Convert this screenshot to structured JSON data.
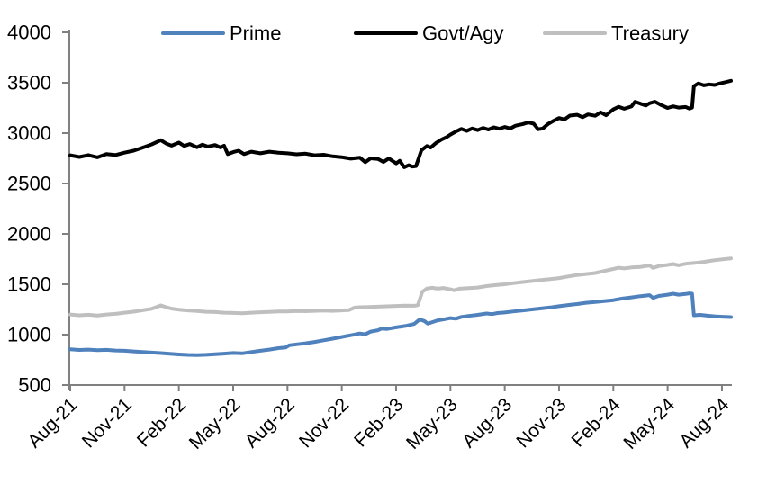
{
  "chart_data": {
    "type": "line",
    "title": "",
    "xlabel": "",
    "ylabel": "",
    "grid": false,
    "axis_color": "#808080",
    "text_color": "#000000",
    "background_color": "#ffffff",
    "ylim": [
      500,
      4000
    ],
    "ytick_labels": [
      "500",
      "1000",
      "1500",
      "2000",
      "2500",
      "3000",
      "3500",
      "4000"
    ],
    "yticks": [
      500,
      1000,
      1500,
      2000,
      2500,
      3000,
      3500,
      4000
    ],
    "x_tick_labels": [
      "Aug-21",
      "Nov-21",
      "Feb-22",
      "May-22",
      "Aug-22",
      "Nov-22",
      "Feb-23",
      "May-23",
      "Aug-23",
      "Nov-23",
      "Feb-24",
      "May-24",
      "Aug-24"
    ],
    "x_tick_months": [
      0,
      3,
      6,
      9,
      12,
      15,
      18,
      21,
      24,
      27,
      30,
      33,
      36
    ],
    "x_range_months": [
      0,
      36.5
    ],
    "legend": {
      "position": "top",
      "labels": [
        "Prime",
        "Govt/Agy",
        "Treasury"
      ]
    },
    "series": [
      {
        "name": "Prime",
        "color": "#4F81BD",
        "width": 4,
        "points": [
          [
            0,
            855
          ],
          [
            0.5,
            848
          ],
          [
            1,
            852
          ],
          [
            1.5,
            846
          ],
          [
            2,
            849
          ],
          [
            2.5,
            843
          ],
          [
            3,
            840
          ],
          [
            3.5,
            834
          ],
          [
            4,
            828
          ],
          [
            4.5,
            822
          ],
          [
            5,
            817
          ],
          [
            5.5,
            810
          ],
          [
            6,
            804
          ],
          [
            6.5,
            799
          ],
          [
            7,
            797
          ],
          [
            7.5,
            800
          ],
          [
            8,
            806
          ],
          [
            8.5,
            812
          ],
          [
            9,
            818
          ],
          [
            9.5,
            814
          ],
          [
            10,
            828
          ],
          [
            10.5,
            840
          ],
          [
            11,
            852
          ],
          [
            11.5,
            866
          ],
          [
            11.9,
            872
          ],
          [
            12.1,
            895
          ],
          [
            12.5,
            904
          ],
          [
            13,
            914
          ],
          [
            13.5,
            928
          ],
          [
            14,
            944
          ],
          [
            14.5,
            960
          ],
          [
            15,
            977
          ],
          [
            15.5,
            994
          ],
          [
            16,
            1012
          ],
          [
            16.3,
            1004
          ],
          [
            16.6,
            1030
          ],
          [
            17,
            1044
          ],
          [
            17.2,
            1060
          ],
          [
            17.5,
            1056
          ],
          [
            18,
            1072
          ],
          [
            18.5,
            1086
          ],
          [
            19,
            1106
          ],
          [
            19.3,
            1150
          ],
          [
            19.55,
            1136
          ],
          [
            19.75,
            1110
          ],
          [
            20,
            1124
          ],
          [
            20.3,
            1142
          ],
          [
            20.6,
            1150
          ],
          [
            21,
            1164
          ],
          [
            21.3,
            1158
          ],
          [
            21.6,
            1176
          ],
          [
            22,
            1186
          ],
          [
            22.5,
            1196
          ],
          [
            23,
            1210
          ],
          [
            23.3,
            1204
          ],
          [
            23.6,
            1214
          ],
          [
            24,
            1220
          ],
          [
            24.5,
            1230
          ],
          [
            25,
            1240
          ],
          [
            25.5,
            1250
          ],
          [
            26,
            1260
          ],
          [
            26.5,
            1270
          ],
          [
            27,
            1282
          ],
          [
            27.5,
            1294
          ],
          [
            28,
            1304
          ],
          [
            28.5,
            1316
          ],
          [
            29,
            1324
          ],
          [
            29.5,
            1332
          ],
          [
            30,
            1342
          ],
          [
            30.5,
            1358
          ],
          [
            31,
            1370
          ],
          [
            31.5,
            1382
          ],
          [
            32,
            1392
          ],
          [
            32.2,
            1364
          ],
          [
            32.5,
            1384
          ],
          [
            33,
            1396
          ],
          [
            33.3,
            1406
          ],
          [
            33.6,
            1396
          ],
          [
            34,
            1404
          ],
          [
            34.2,
            1410
          ],
          [
            34.35,
            1406
          ],
          [
            34.45,
            1192
          ],
          [
            34.8,
            1196
          ],
          [
            35.2,
            1188
          ],
          [
            35.6,
            1182
          ],
          [
            36,
            1178
          ],
          [
            36.5,
            1174
          ]
        ]
      },
      {
        "name": "Govt/Agy",
        "color": "#000000",
        "width": 4,
        "points": [
          [
            0,
            2780
          ],
          [
            0.5,
            2763
          ],
          [
            1,
            2782
          ],
          [
            1.5,
            2760
          ],
          [
            2,
            2792
          ],
          [
            2.5,
            2783
          ],
          [
            3,
            2806
          ],
          [
            3.5,
            2826
          ],
          [
            4,
            2856
          ],
          [
            4.5,
            2888
          ],
          [
            5,
            2930
          ],
          [
            5.3,
            2896
          ],
          [
            5.6,
            2876
          ],
          [
            6,
            2906
          ],
          [
            6.3,
            2872
          ],
          [
            6.6,
            2892
          ],
          [
            7,
            2860
          ],
          [
            7.3,
            2886
          ],
          [
            7.6,
            2866
          ],
          [
            8,
            2882
          ],
          [
            8.3,
            2858
          ],
          [
            8.5,
            2876
          ],
          [
            8.7,
            2792
          ],
          [
            9,
            2812
          ],
          [
            9.3,
            2826
          ],
          [
            9.6,
            2792
          ],
          [
            10,
            2816
          ],
          [
            10.5,
            2800
          ],
          [
            11,
            2816
          ],
          [
            11.5,
            2806
          ],
          [
            12,
            2800
          ],
          [
            12.5,
            2790
          ],
          [
            13,
            2796
          ],
          [
            13.5,
            2780
          ],
          [
            14,
            2786
          ],
          [
            14.5,
            2770
          ],
          [
            15,
            2762
          ],
          [
            15.5,
            2746
          ],
          [
            16,
            2756
          ],
          [
            16.3,
            2712
          ],
          [
            16.6,
            2750
          ],
          [
            17,
            2744
          ],
          [
            17.3,
            2714
          ],
          [
            17.6,
            2748
          ],
          [
            18,
            2700
          ],
          [
            18.2,
            2726
          ],
          [
            18.45,
            2662
          ],
          [
            18.7,
            2682
          ],
          [
            18.9,
            2668
          ],
          [
            19.1,
            2672
          ],
          [
            19.4,
            2830
          ],
          [
            19.7,
            2872
          ],
          [
            19.9,
            2856
          ],
          [
            20.2,
            2902
          ],
          [
            20.5,
            2936
          ],
          [
            20.8,
            2962
          ],
          [
            21,
            2986
          ],
          [
            21.3,
            3016
          ],
          [
            21.6,
            3042
          ],
          [
            21.9,
            3022
          ],
          [
            22.2,
            3046
          ],
          [
            22.5,
            3030
          ],
          [
            22.8,
            3052
          ],
          [
            23.1,
            3036
          ],
          [
            23.4,
            3058
          ],
          [
            23.7,
            3044
          ],
          [
            24,
            3062
          ],
          [
            24.3,
            3046
          ],
          [
            24.6,
            3074
          ],
          [
            25,
            3090
          ],
          [
            25.3,
            3106
          ],
          [
            25.6,
            3094
          ],
          [
            25.85,
            3038
          ],
          [
            26.1,
            3046
          ],
          [
            26.4,
            3092
          ],
          [
            26.7,
            3122
          ],
          [
            27,
            3150
          ],
          [
            27.3,
            3136
          ],
          [
            27.6,
            3174
          ],
          [
            28,
            3182
          ],
          [
            28.3,
            3158
          ],
          [
            28.6,
            3186
          ],
          [
            29,
            3172
          ],
          [
            29.3,
            3206
          ],
          [
            29.6,
            3178
          ],
          [
            30,
            3236
          ],
          [
            30.3,
            3262
          ],
          [
            30.6,
            3242
          ],
          [
            31,
            3264
          ],
          [
            31.2,
            3312
          ],
          [
            31.5,
            3292
          ],
          [
            31.8,
            3274
          ],
          [
            32,
            3296
          ],
          [
            32.3,
            3312
          ],
          [
            32.6,
            3282
          ],
          [
            33,
            3250
          ],
          [
            33.3,
            3266
          ],
          [
            33.6,
            3254
          ],
          [
            34,
            3260
          ],
          [
            34.2,
            3244
          ],
          [
            34.35,
            3254
          ],
          [
            34.45,
            3466
          ],
          [
            34.7,
            3494
          ],
          [
            35,
            3474
          ],
          [
            35.3,
            3484
          ],
          [
            35.6,
            3478
          ],
          [
            35.9,
            3494
          ],
          [
            36.2,
            3506
          ],
          [
            36.5,
            3520
          ]
        ]
      },
      {
        "name": "Treasury",
        "color": "#BFBFBF",
        "width": 4,
        "points": [
          [
            0,
            1200
          ],
          [
            0.5,
            1192
          ],
          [
            1,
            1197
          ],
          [
            1.5,
            1190
          ],
          [
            2,
            1200
          ],
          [
            2.5,
            1206
          ],
          [
            3,
            1218
          ],
          [
            3.5,
            1228
          ],
          [
            4,
            1242
          ],
          [
            4.5,
            1256
          ],
          [
            5,
            1290
          ],
          [
            5.3,
            1272
          ],
          [
            5.6,
            1258
          ],
          [
            6,
            1248
          ],
          [
            6.5,
            1240
          ],
          [
            7,
            1234
          ],
          [
            7.5,
            1227
          ],
          [
            8,
            1224
          ],
          [
            8.5,
            1218
          ],
          [
            9,
            1215
          ],
          [
            9.5,
            1212
          ],
          [
            10,
            1218
          ],
          [
            10.5,
            1222
          ],
          [
            11,
            1226
          ],
          [
            11.5,
            1230
          ],
          [
            12,
            1230
          ],
          [
            12.5,
            1234
          ],
          [
            13,
            1232
          ],
          [
            13.5,
            1236
          ],
          [
            14,
            1238
          ],
          [
            14.5,
            1236
          ],
          [
            15,
            1240
          ],
          [
            15.4,
            1244
          ],
          [
            15.7,
            1268
          ],
          [
            16,
            1272
          ],
          [
            16.5,
            1274
          ],
          [
            17,
            1278
          ],
          [
            17.5,
            1281
          ],
          [
            18,
            1285
          ],
          [
            18.5,
            1288
          ],
          [
            19,
            1287
          ],
          [
            19.2,
            1292
          ],
          [
            19.45,
            1425
          ],
          [
            19.7,
            1458
          ],
          [
            20,
            1465
          ],
          [
            20.3,
            1456
          ],
          [
            20.6,
            1463
          ],
          [
            21,
            1450
          ],
          [
            21.2,
            1440
          ],
          [
            21.5,
            1456
          ],
          [
            22,
            1462
          ],
          [
            22.5,
            1468
          ],
          [
            23,
            1482
          ],
          [
            23.5,
            1492
          ],
          [
            24,
            1500
          ],
          [
            24.5,
            1512
          ],
          [
            25,
            1522
          ],
          [
            25.5,
            1532
          ],
          [
            26,
            1542
          ],
          [
            26.5,
            1552
          ],
          [
            27,
            1562
          ],
          [
            27.5,
            1578
          ],
          [
            28,
            1592
          ],
          [
            28.5,
            1602
          ],
          [
            29,
            1612
          ],
          [
            29.5,
            1632
          ],
          [
            30,
            1652
          ],
          [
            30.3,
            1664
          ],
          [
            30.6,
            1657
          ],
          [
            31,
            1667
          ],
          [
            31.5,
            1672
          ],
          [
            32,
            1687
          ],
          [
            32.2,
            1662
          ],
          [
            32.5,
            1680
          ],
          [
            33,
            1692
          ],
          [
            33.3,
            1701
          ],
          [
            33.6,
            1688
          ],
          [
            34,
            1704
          ],
          [
            34.5,
            1712
          ],
          [
            35,
            1722
          ],
          [
            35.5,
            1737
          ],
          [
            36,
            1747
          ],
          [
            36.5,
            1757
          ]
        ]
      }
    ]
  }
}
